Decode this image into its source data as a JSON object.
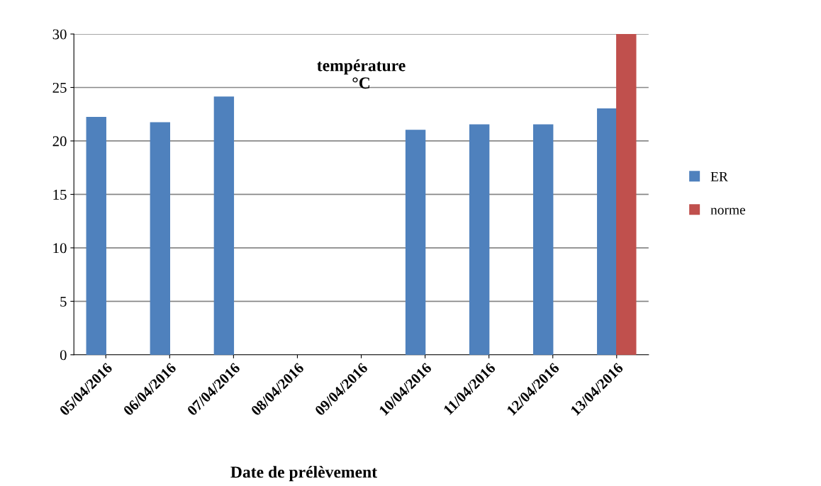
{
  "chart_data": {
    "type": "bar",
    "title": "température\n°C",
    "xlabel": "Date de prélèvement",
    "categories": [
      "05/04/2016",
      "06/04/2016",
      "07/04/2016",
      "08/04/2016",
      "09/04/2016",
      "10/04/2016",
      "11/04/2016",
      "12/04/2016",
      "13/04/2016"
    ],
    "series": [
      {
        "name": "ER",
        "color": "#4f81bd",
        "values": [
          22.2,
          21.7,
          24.1,
          null,
          null,
          21.0,
          21.5,
          21.5,
          23.0
        ]
      },
      {
        "name": "norme",
        "color": "#c0504d",
        "values": [
          null,
          null,
          null,
          null,
          null,
          null,
          null,
          null,
          30
        ]
      }
    ],
    "ylim": [
      0,
      30
    ],
    "yticks": [
      0,
      5,
      10,
      15,
      20,
      25,
      30
    ],
    "grid": "y",
    "legend": "right"
  }
}
